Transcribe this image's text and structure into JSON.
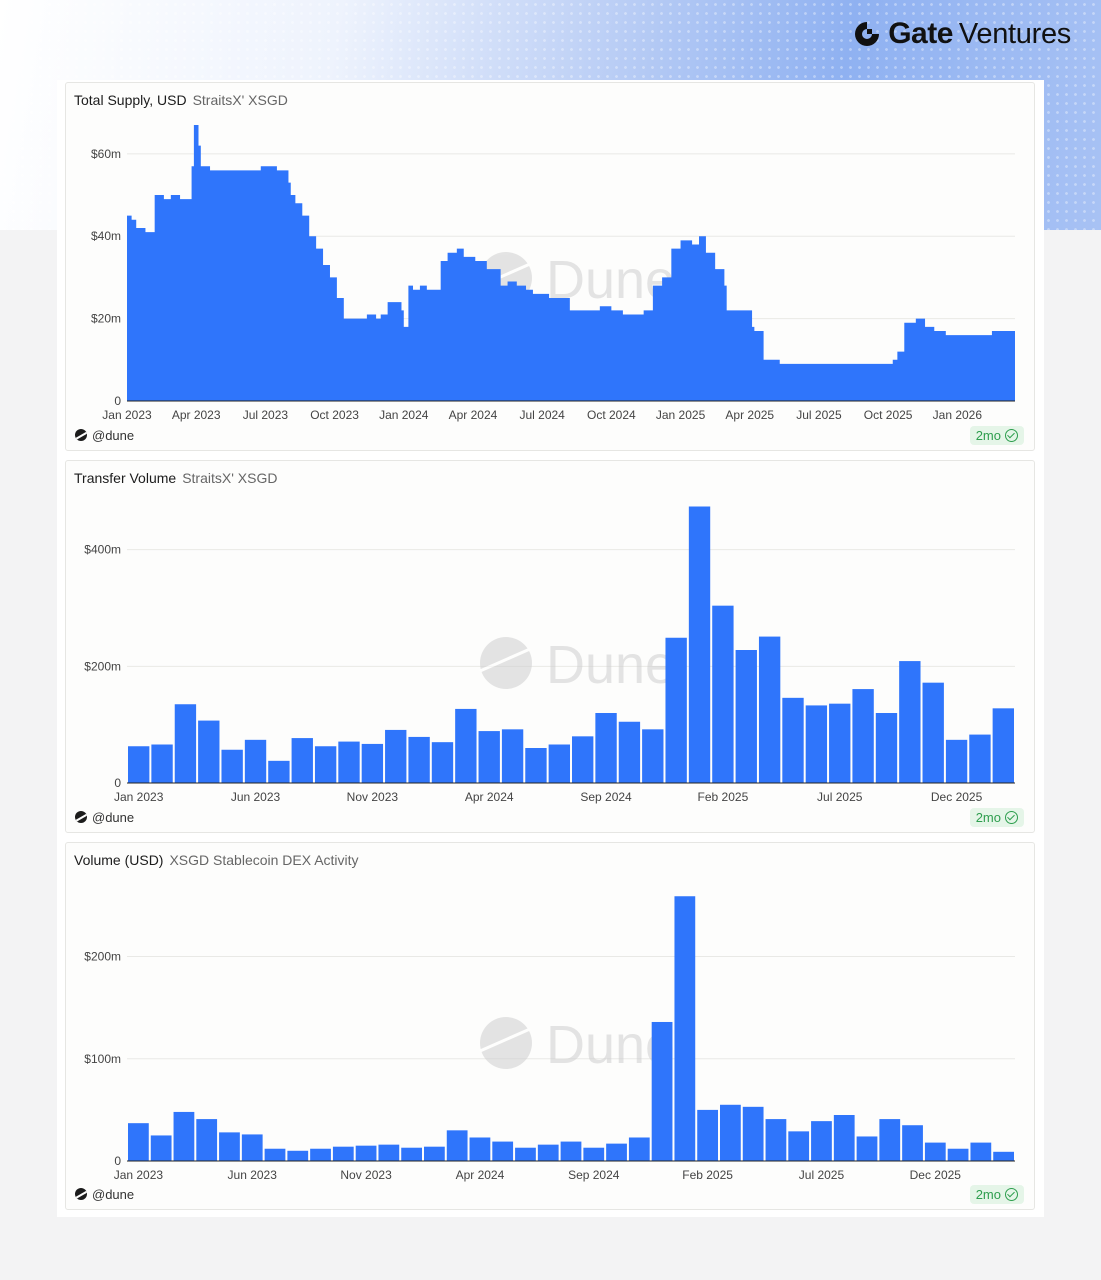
{
  "brand": {
    "gate": "Gate",
    "ventures": "Ventures"
  },
  "colors": {
    "bar": "#2f75fb",
    "grid": "#e9e9e6",
    "axis": "#222222",
    "tick_text": "#444444",
    "watermark": "#cfcfcf"
  },
  "watermark": "Dune",
  "chart_data": [
    {
      "type": "area",
      "title": "Total Supply, USD",
      "subtitle": "StraitsX' XSGD",
      "footer": "@dune",
      "badge": "2mo",
      "xlim": [
        0,
        38.5
      ],
      "ylim": [
        0,
        67
      ],
      "yticks": [
        0,
        20,
        40,
        60
      ],
      "ytick_labels": [
        "0",
        "$20m",
        "$40m",
        "$60m"
      ],
      "xtick_positions": [
        0,
        3,
        6,
        9,
        12,
        15,
        18,
        21,
        24,
        27,
        30,
        33,
        36
      ],
      "xtick_labels": [
        "Jan 2023",
        "Apr 2023",
        "Jul 2023",
        "Oct 2023",
        "Jan 2024",
        "Apr 2024",
        "Jul 2024",
        "Oct 2024",
        "Jan 2025",
        "Apr 2025",
        "Jul 2025",
        "Oct 2025",
        "Jan 2026"
      ],
      "x_months": [
        0,
        0.2,
        0.4,
        0.8,
        1.2,
        1.6,
        1.9,
        2.3,
        2.8,
        2.9,
        3.1,
        3.2,
        3.5,
        3.6,
        4.2,
        5,
        5.8,
        6.5,
        7,
        7.1,
        7.3,
        7.6,
        7.9,
        8.2,
        8.5,
        8.8,
        9.1,
        9.4,
        10,
        10.4,
        10.8,
        11,
        11.3,
        11.9,
        12,
        12.2,
        12.4,
        12.7,
        13,
        13.6,
        13.9,
        14.3,
        14.6,
        15.1,
        15.6,
        16.2,
        16.5,
        16.9,
        17.3,
        17.6,
        18.3,
        18.8,
        19.2,
        19.5,
        20.5,
        21,
        21.5,
        22.4,
        22.8,
        23.2,
        23.6,
        24,
        24.5,
        24.8,
        25.1,
        25.5,
        25.9,
        26,
        26.5,
        26.9,
        27.1,
        27.2,
        27.6,
        28.3,
        29.5,
        30.5,
        31.5,
        32.5,
        33.2,
        33.4,
        33.7,
        34.2,
        34.6,
        35,
        35.5,
        36.5,
        36.9,
        37.5,
        38,
        38.5
      ],
      "values": [
        45,
        44,
        42,
        41,
        50,
        49,
        50,
        49,
        57,
        67,
        62,
        57,
        57,
        56,
        56,
        56,
        57,
        56,
        53,
        50,
        48,
        45,
        40,
        37,
        33,
        30,
        25,
        20,
        20,
        21,
        20,
        21,
        24,
        22,
        18,
        28,
        27,
        28,
        27,
        34,
        36,
        37,
        35,
        34,
        32,
        28,
        29,
        28,
        27,
        26,
        25,
        25,
        22,
        22,
        23,
        22,
        21,
        22,
        28,
        30,
        37,
        39,
        38,
        40,
        36,
        32,
        28,
        22,
        22,
        22,
        18,
        17,
        10,
        9,
        9,
        9,
        9,
        9,
        10,
        12,
        19,
        20,
        18,
        17,
        16,
        16,
        16,
        17,
        17,
        17
      ]
    },
    {
      "type": "bar",
      "title": "Transfer Volume",
      "subtitle": "StraitsX' XSGD",
      "footer": "@dune",
      "badge": "2mo",
      "ylim": [
        0,
        480
      ],
      "yticks": [
        0,
        200,
        400
      ],
      "ytick_labels": [
        "0",
        "$200m",
        "$400m"
      ],
      "xtick_index": [
        0,
        5,
        10,
        15,
        20,
        25,
        30,
        35
      ],
      "xtick_labels": [
        "Jan 2023",
        "Jun 2023",
        "Nov 2023",
        "Apr 2024",
        "Sep 2024",
        "Feb 2025",
        "Jul 2025",
        "Dec 2025"
      ],
      "values": [
        63,
        66,
        135,
        107,
        57,
        74,
        38,
        77,
        63,
        71,
        67,
        91,
        79,
        70,
        127,
        89,
        92,
        60,
        66,
        80,
        120,
        105,
        92,
        249,
        474,
        304,
        228,
        251,
        146,
        133,
        136,
        161,
        120,
        209,
        172,
        74,
        83,
        128
      ]
    },
    {
      "type": "bar",
      "title": "Volume (USD)",
      "subtitle": "XSGD Stablecoin DEX Activity",
      "footer": "@dune",
      "badge": "2mo",
      "ylim": [
        0,
        270
      ],
      "yticks": [
        0,
        100,
        200
      ],
      "ytick_labels": [
        "0",
        "$100m",
        "$200m"
      ],
      "xtick_index": [
        0,
        5,
        10,
        15,
        20,
        25,
        30,
        35
      ],
      "xtick_labels": [
        "Jan 2023",
        "Jun 2023",
        "Nov 2023",
        "Apr 2024",
        "Sep 2024",
        "Feb 2025",
        "Jul 2025",
        "Dec 2025"
      ],
      "values": [
        37,
        25,
        48,
        41,
        28,
        26,
        12,
        10,
        12,
        14,
        15,
        16,
        13,
        14,
        30,
        23,
        19,
        13,
        16,
        19,
        13,
        17,
        23,
        136,
        259,
        50,
        55,
        53,
        41,
        29,
        39,
        45,
        24,
        41,
        35,
        18,
        12,
        18,
        9
      ]
    }
  ]
}
